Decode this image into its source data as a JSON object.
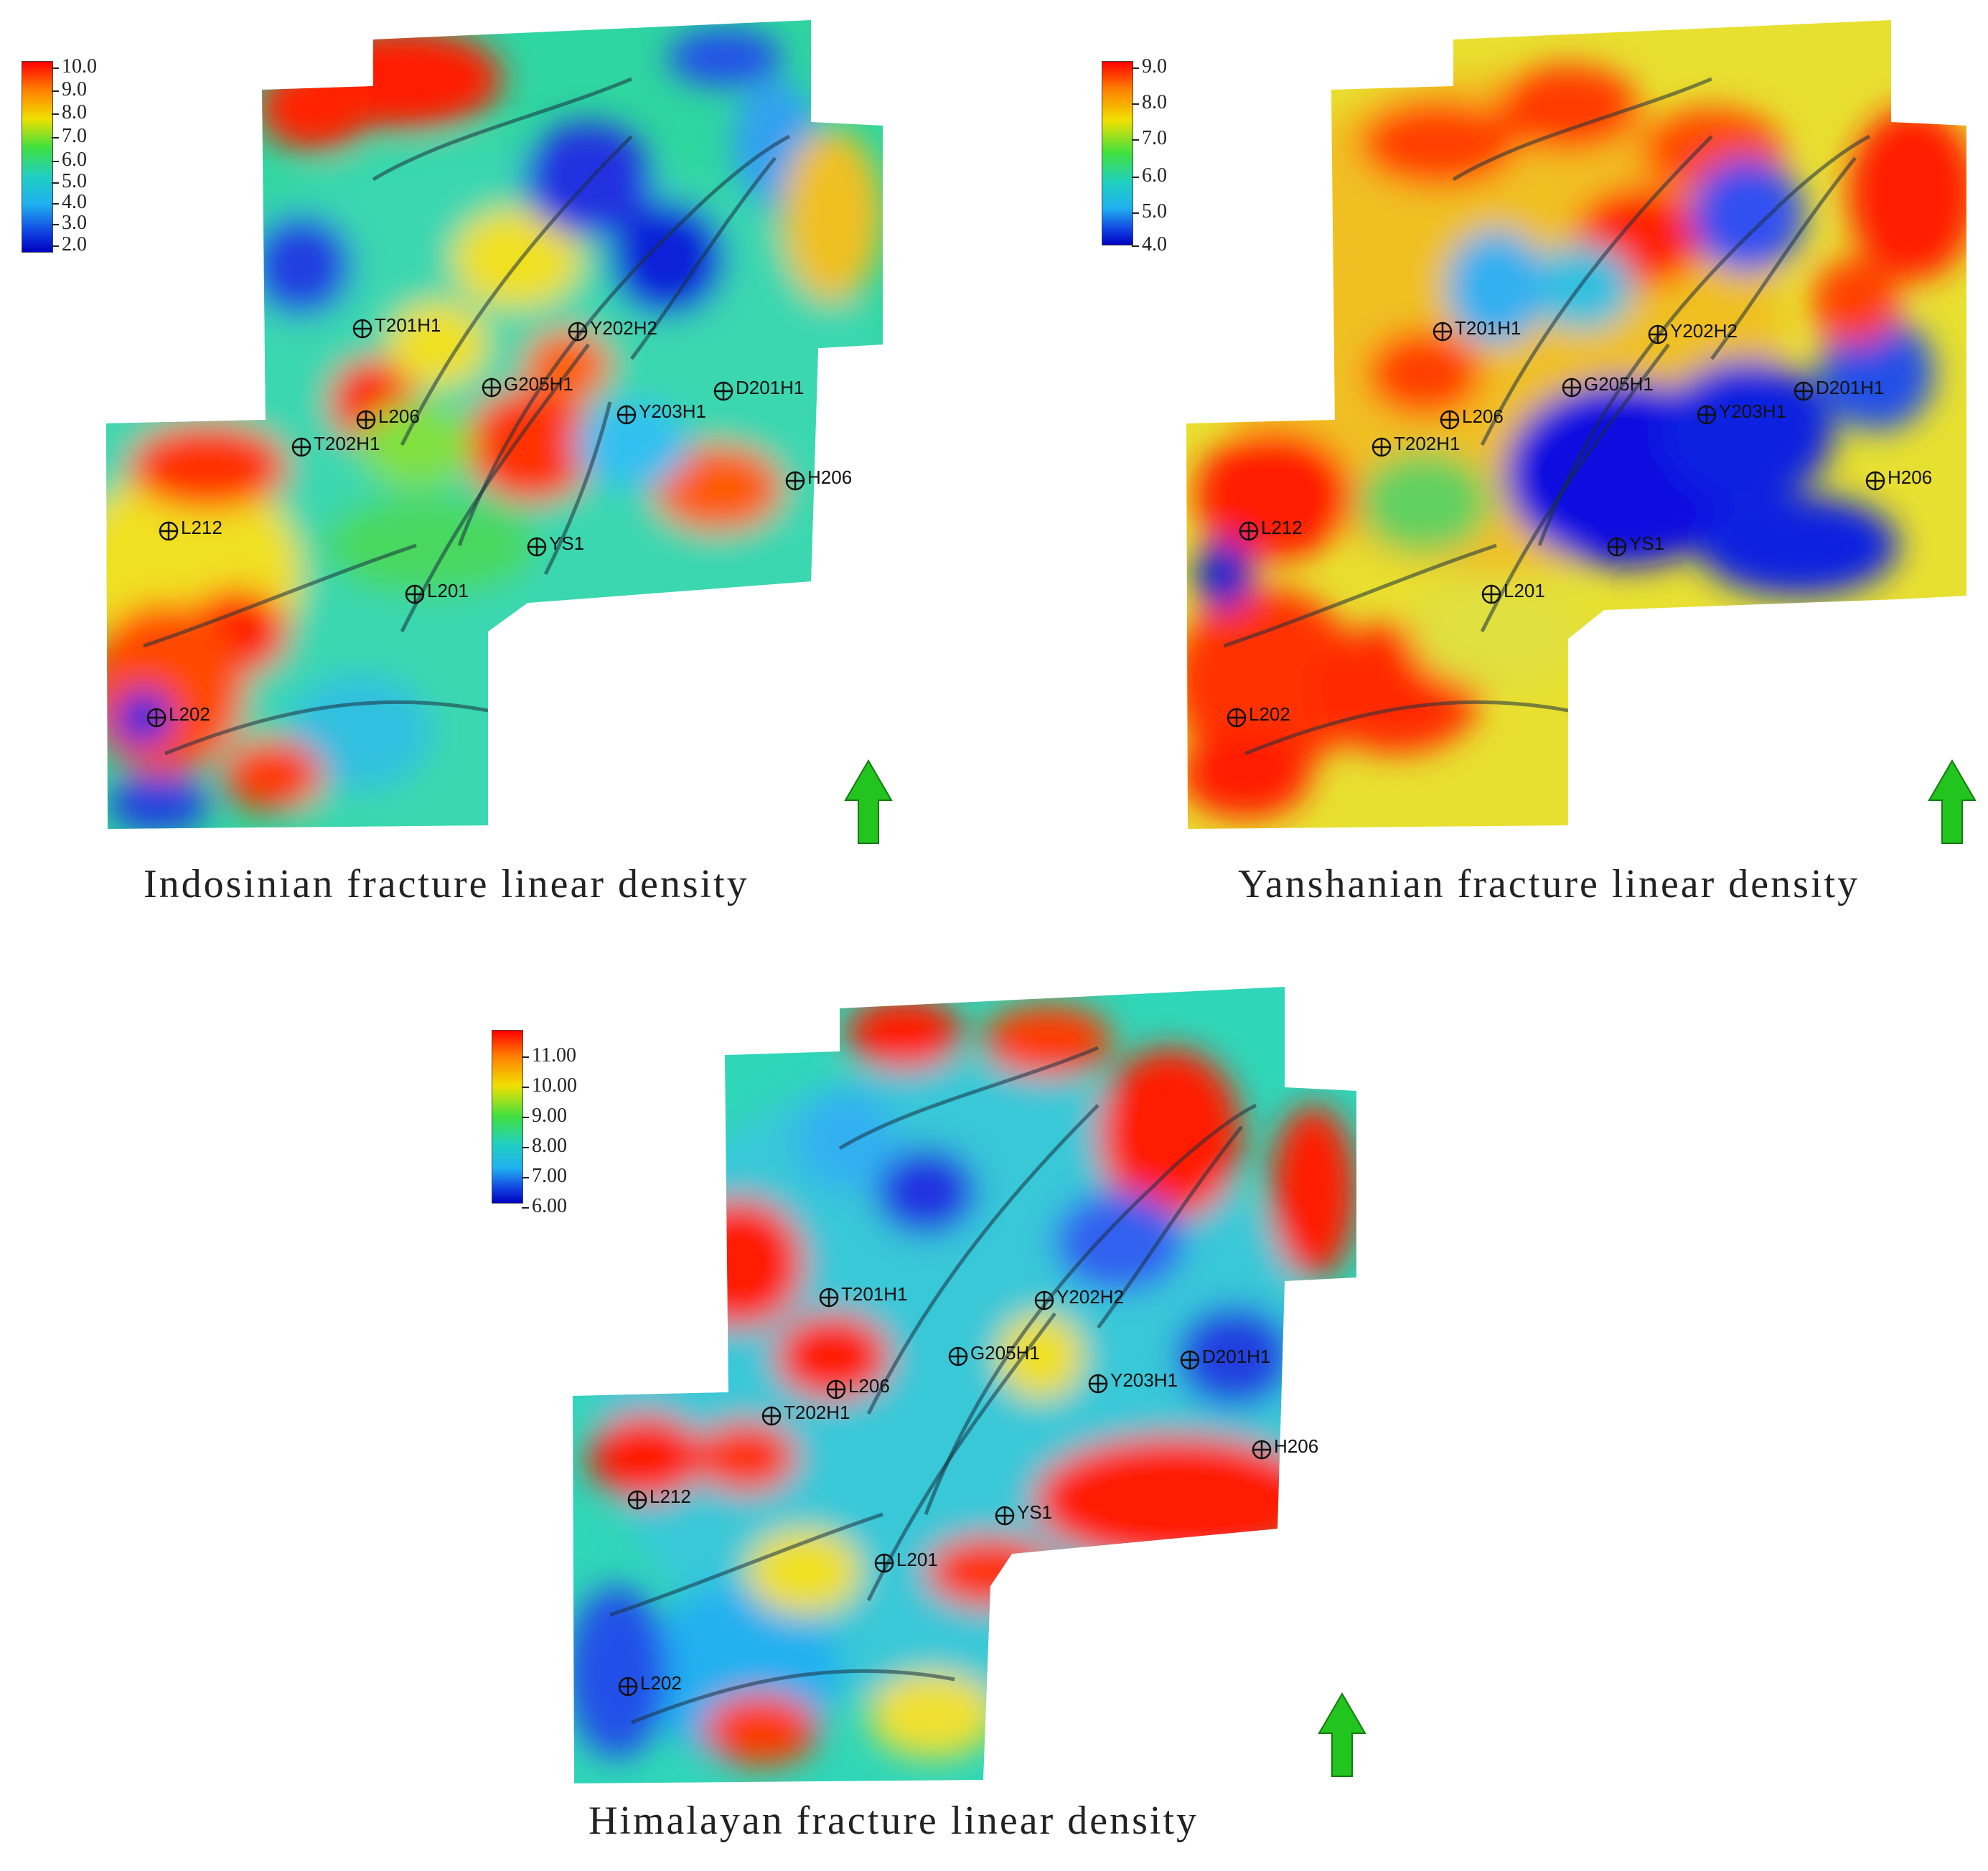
{
  "panels": [
    {
      "id": "indosinian",
      "caption": "Indosinian fracture linear density",
      "legend": {
        "ticks": [
          "10.0",
          "9.0",
          "8.0",
          "7.0",
          "6.0",
          "5.0",
          "4.0",
          "3.0",
          "2.0"
        ]
      }
    },
    {
      "id": "yanshanian",
      "caption": "Yanshanian fracture linear density",
      "legend": {
        "ticks": [
          "9.0",
          "8.0",
          "7.0",
          "6.0",
          "5.0",
          "4.0"
        ]
      }
    },
    {
      "id": "himalayan",
      "caption": "Himalayan fracture linear density",
      "legend": {
        "ticks": [
          "11.00",
          "10.00",
          "9.00",
          "8.00",
          "7.00",
          "6.00"
        ]
      }
    }
  ],
  "wells": [
    "T201H1",
    "Y202H2",
    "G205H1",
    "D201H1",
    "L206",
    "Y203H1",
    "T202H1",
    "H206",
    "L212",
    "YS1",
    "L201",
    "L202"
  ],
  "colors": {
    "north_arrow": "#22c51e",
    "high": "#ff1a00",
    "low": "#0a1fd6"
  },
  "north_arrow_icon": "north-arrow-icon"
}
